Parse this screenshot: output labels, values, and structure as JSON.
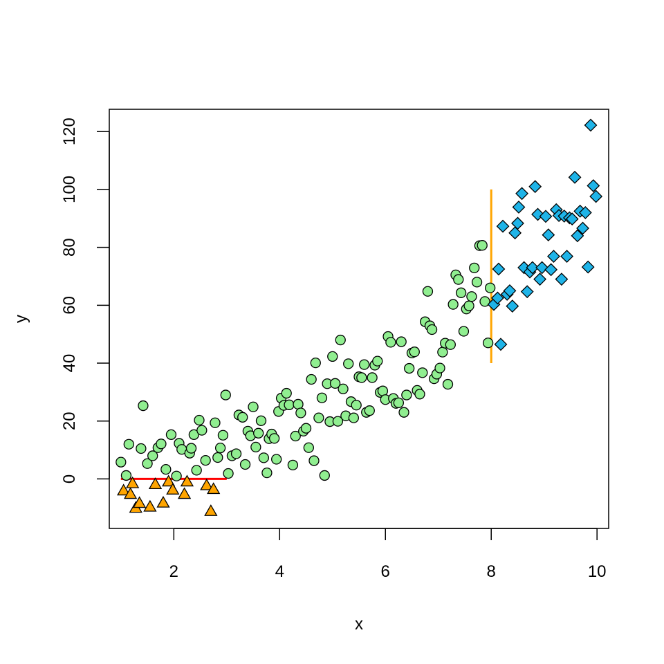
{
  "chart_data": {
    "type": "scatter",
    "xlabel": "x",
    "ylabel": "y",
    "xlim": [
      0.78,
      10.22
    ],
    "ylim": [
      -17.1,
      127.7
    ],
    "x_ticks": [
      2,
      4,
      6,
      8,
      10
    ],
    "y_ticks": [
      0,
      20,
      40,
      60,
      80,
      100,
      120
    ],
    "grid": false,
    "colors": {
      "green_fill": "#90ee90",
      "orange_fill": "#ffa500",
      "blue_fill": "#1fb4e8",
      "outline": "#000000",
      "ref_hline": "#ff0000",
      "ref_vline": "#ffa500"
    },
    "reference_lines": [
      {
        "orientation": "horizontal",
        "y": 0,
        "x_from": 1,
        "x_to": 3,
        "color": "#ff0000"
      },
      {
        "orientation": "vertical",
        "x": 8,
        "y_from": 40,
        "y_to": 100,
        "color": "#ffa500"
      }
    ],
    "series": [
      {
        "marker": "circle",
        "color": "#90ee90",
        "points": [
          [
            1.0,
            5.8
          ],
          [
            1.1,
            1.2
          ],
          [
            1.15,
            12.0
          ],
          [
            1.38,
            10.5
          ],
          [
            1.42,
            25.3
          ],
          [
            1.5,
            5.3
          ],
          [
            1.6,
            8.0
          ],
          [
            1.7,
            10.8
          ],
          [
            1.76,
            12.1
          ],
          [
            1.85,
            3.3
          ],
          [
            1.95,
            15.3
          ],
          [
            2.05,
            1.0
          ],
          [
            2.1,
            12.3
          ],
          [
            2.15,
            10.2
          ],
          [
            2.3,
            8.9
          ],
          [
            2.33,
            10.6
          ],
          [
            2.38,
            15.3
          ],
          [
            2.43,
            3.0
          ],
          [
            2.48,
            20.3
          ],
          [
            2.53,
            16.8
          ],
          [
            2.6,
            6.4
          ],
          [
            2.78,
            19.4
          ],
          [
            2.83,
            7.4
          ],
          [
            2.88,
            10.7
          ],
          [
            2.93,
            15.1
          ],
          [
            2.98,
            29.0
          ],
          [
            3.03,
            1.9
          ],
          [
            3.1,
            8.0
          ],
          [
            3.18,
            8.7
          ],
          [
            3.23,
            22.1
          ],
          [
            3.3,
            21.3
          ],
          [
            3.35,
            5.0
          ],
          [
            3.4,
            16.5
          ],
          [
            3.45,
            14.9
          ],
          [
            3.5,
            24.9
          ],
          [
            3.55,
            11.0
          ],
          [
            3.6,
            15.8
          ],
          [
            3.65,
            20.1
          ],
          [
            3.7,
            7.3
          ],
          [
            3.76,
            2.1
          ],
          [
            3.8,
            13.9
          ],
          [
            3.85,
            15.5
          ],
          [
            3.9,
            14.0
          ],
          [
            3.94,
            6.8
          ],
          [
            3.98,
            23.3
          ],
          [
            4.03,
            27.9
          ],
          [
            4.08,
            25.4
          ],
          [
            4.13,
            29.6
          ],
          [
            4.18,
            25.6
          ],
          [
            4.25,
            4.8
          ],
          [
            4.3,
            14.8
          ],
          [
            4.35,
            25.8
          ],
          [
            4.4,
            22.8
          ],
          [
            4.45,
            16.5
          ],
          [
            4.5,
            17.5
          ],
          [
            4.55,
            10.8
          ],
          [
            4.6,
            34.4
          ],
          [
            4.65,
            6.3
          ],
          [
            4.68,
            40.1
          ],
          [
            4.74,
            21.1
          ],
          [
            4.8,
            28.0
          ],
          [
            4.85,
            1.2
          ],
          [
            4.9,
            32.9
          ],
          [
            4.95,
            19.8
          ],
          [
            5.0,
            42.3
          ],
          [
            5.05,
            33.0
          ],
          [
            5.1,
            19.9
          ],
          [
            5.15,
            48.0
          ],
          [
            5.2,
            31.1
          ],
          [
            5.25,
            21.8
          ],
          [
            5.3,
            39.8
          ],
          [
            5.35,
            26.7
          ],
          [
            5.4,
            21.1
          ],
          [
            5.45,
            25.5
          ],
          [
            5.5,
            35.3
          ],
          [
            5.55,
            35.0
          ],
          [
            5.6,
            39.5
          ],
          [
            5.64,
            23.0
          ],
          [
            5.7,
            23.6
          ],
          [
            5.75,
            35.0
          ],
          [
            5.8,
            39.3
          ],
          [
            5.85,
            40.7
          ],
          [
            5.9,
            29.9
          ],
          [
            5.95,
            30.4
          ],
          [
            6.0,
            27.4
          ],
          [
            6.05,
            49.2
          ],
          [
            6.1,
            47.2
          ],
          [
            6.15,
            27.8
          ],
          [
            6.2,
            26.1
          ],
          [
            6.25,
            26.3
          ],
          [
            6.3,
            47.4
          ],
          [
            6.35,
            23.0
          ],
          [
            6.4,
            29.0
          ],
          [
            6.45,
            38.2
          ],
          [
            6.5,
            43.5
          ],
          [
            6.55,
            43.9
          ],
          [
            6.6,
            30.6
          ],
          [
            6.65,
            29.3
          ],
          [
            6.7,
            36.7
          ],
          [
            6.75,
            54.3
          ],
          [
            6.8,
            64.8
          ],
          [
            6.84,
            52.9
          ],
          [
            6.88,
            51.6
          ],
          [
            6.92,
            34.6
          ],
          [
            6.97,
            36.2
          ],
          [
            7.03,
            38.3
          ],
          [
            7.08,
            43.8
          ],
          [
            7.13,
            46.9
          ],
          [
            7.18,
            32.7
          ],
          [
            7.23,
            46.4
          ],
          [
            7.28,
            60.3
          ],
          [
            7.33,
            70.5
          ],
          [
            7.38,
            68.9
          ],
          [
            7.43,
            64.3
          ],
          [
            7.48,
            51.0
          ],
          [
            7.53,
            58.7
          ],
          [
            7.58,
            59.8
          ],
          [
            7.63,
            63.0
          ],
          [
            7.68,
            72.9
          ],
          [
            7.73,
            68.0
          ],
          [
            7.78,
            80.6
          ],
          [
            7.83,
            80.7
          ],
          [
            7.88,
            61.3
          ],
          [
            7.94,
            47.0
          ],
          [
            7.98,
            66.0
          ]
        ]
      },
      {
        "marker": "triangle",
        "color": "#ffa500",
        "points": [
          [
            1.05,
            -4.0
          ],
          [
            1.18,
            -5.2
          ],
          [
            1.22,
            -1.5
          ],
          [
            1.28,
            -10.0
          ],
          [
            1.35,
            -8.3
          ],
          [
            1.55,
            -9.6
          ],
          [
            1.65,
            -1.8
          ],
          [
            1.8,
            -8.2
          ],
          [
            1.9,
            -0.9
          ],
          [
            1.98,
            -3.7
          ],
          [
            2.2,
            -5.2
          ],
          [
            2.25,
            -0.9
          ],
          [
            2.62,
            -2.2
          ],
          [
            2.7,
            -11.1
          ],
          [
            2.75,
            -3.5
          ]
        ]
      },
      {
        "marker": "diamond",
        "color": "#1fb4e8",
        "points": [
          [
            8.05,
            60.3
          ],
          [
            8.12,
            62.5
          ],
          [
            8.14,
            72.5
          ],
          [
            8.18,
            46.5
          ],
          [
            8.22,
            87.3
          ],
          [
            8.3,
            63.8
          ],
          [
            8.35,
            65.0
          ],
          [
            8.4,
            59.7
          ],
          [
            8.45,
            85.0
          ],
          [
            8.5,
            88.3
          ],
          [
            8.52,
            93.9
          ],
          [
            8.58,
            98.6
          ],
          [
            8.62,
            73.0
          ],
          [
            8.68,
            64.7
          ],
          [
            8.73,
            71.5
          ],
          [
            8.78,
            73.0
          ],
          [
            8.83,
            101.0
          ],
          [
            8.88,
            91.4
          ],
          [
            8.92,
            69.0
          ],
          [
            8.96,
            73.0
          ],
          [
            9.03,
            90.7
          ],
          [
            9.08,
            84.3
          ],
          [
            9.13,
            72.3
          ],
          [
            9.18,
            76.9
          ],
          [
            9.23,
            93.0
          ],
          [
            9.28,
            91.0
          ],
          [
            9.33,
            69.0
          ],
          [
            9.38,
            90.8
          ],
          [
            9.43,
            76.9
          ],
          [
            9.48,
            90.2
          ],
          [
            9.53,
            89.8
          ],
          [
            9.58,
            104.2
          ],
          [
            9.63,
            84.0
          ],
          [
            9.68,
            92.5
          ],
          [
            9.73,
            86.6
          ],
          [
            9.78,
            92.0
          ],
          [
            9.83,
            73.2
          ],
          [
            9.88,
            122.2
          ],
          [
            9.93,
            101.3
          ],
          [
            9.98,
            97.6
          ]
        ]
      }
    ]
  }
}
